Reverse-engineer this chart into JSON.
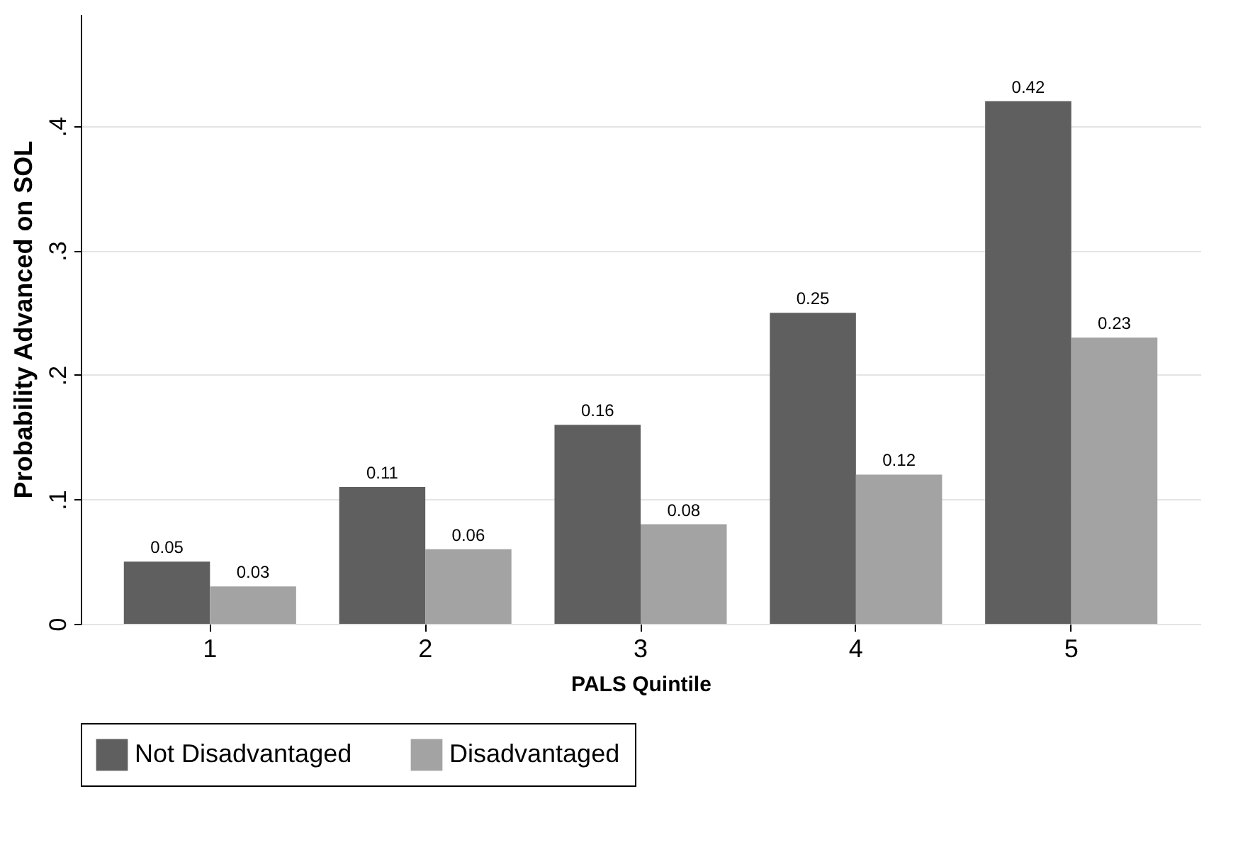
{
  "chart_data": {
    "type": "bar",
    "xlabel": "PALS Quintile",
    "ylabel": "Probability Advanced on SOL",
    "categories": [
      "1",
      "2",
      "3",
      "4",
      "5"
    ],
    "series": [
      {
        "name": "Not Disadvantaged",
        "color": "#5f5f5f",
        "values": [
          0.05,
          0.11,
          0.16,
          0.25,
          0.42
        ]
      },
      {
        "name": "Disadvantaged",
        "color": "#a3a3a3",
        "values": [
          0.03,
          0.06,
          0.08,
          0.12,
          0.23
        ]
      }
    ],
    "ylim": [
      0,
      0.49
    ],
    "yticks": [
      0,
      {
        "value": 0.1,
        "label": ".1"
      },
      {
        "value": 0.2,
        "label": ".2"
      },
      {
        "value": 0.3,
        "label": ".3"
      },
      {
        "value": 0.4,
        "label": ".4"
      }
    ],
    "grid": "y",
    "legend": "bottom",
    "data_labels": true
  }
}
